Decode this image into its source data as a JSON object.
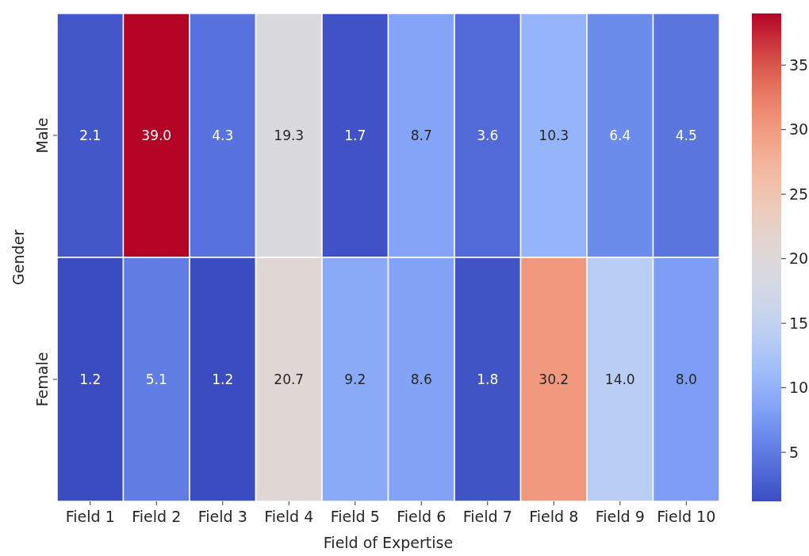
{
  "chart_data": {
    "type": "heatmap",
    "xlabel": "Field of Expertise",
    "ylabel": "Gender",
    "categories": [
      "Field 1",
      "Field 2",
      "Field 3",
      "Field 4",
      "Field 5",
      "Field 6",
      "Field 7",
      "Field 8",
      "Field 9",
      "Field 10"
    ],
    "y_categories": [
      "Male",
      "Female"
    ],
    "cells": [
      [
        2.1,
        39.0,
        4.3,
        19.3,
        1.7,
        8.7,
        3.6,
        10.3,
        6.4,
        4.5
      ],
      [
        1.2,
        5.1,
        1.2,
        20.7,
        9.2,
        8.6,
        1.8,
        30.2,
        14.0,
        8.0
      ]
    ],
    "cell_labels": [
      [
        "2.1",
        "39.0",
        "4.3",
        "19.3",
        "1.7",
        "8.7",
        "3.6",
        "10.3",
        "6.4",
        "4.5"
      ],
      [
        "1.2",
        "5.1",
        "1.2",
        "20.7",
        "9.2",
        "8.6",
        "1.8",
        "30.2",
        "14.0",
        "8.0"
      ]
    ],
    "clim": [
      1.2,
      39.0
    ],
    "cticks": [
      5,
      10,
      15,
      20,
      25,
      30,
      35
    ]
  }
}
